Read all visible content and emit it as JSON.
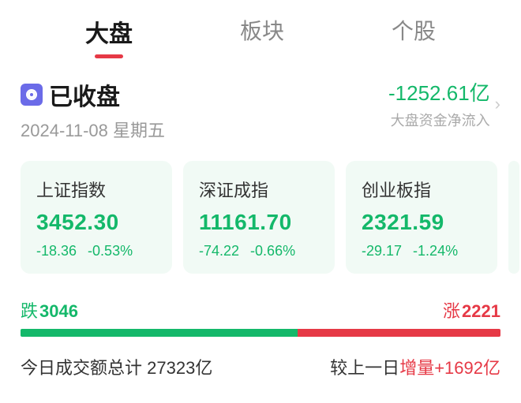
{
  "tabs": {
    "items": [
      "大盘",
      "板块",
      "个股"
    ],
    "active_index": 0
  },
  "status": {
    "title": "已收盘",
    "date": "2024-11-08",
    "weekday": "星期五"
  },
  "netflow": {
    "value": "-1252.61亿",
    "label": "大盘资金净流入",
    "color": "#14b86a"
  },
  "indices": [
    {
      "name": "上证指数",
      "value": "3452.30",
      "change": "-18.36",
      "pct": "-0.53%"
    },
    {
      "name": "深证成指",
      "value": "11161.70",
      "change": "-74.22",
      "pct": "-0.66%"
    },
    {
      "name": "创业板指",
      "value": "2321.59",
      "change": "-29.17",
      "pct": "-1.24%"
    }
  ],
  "breadth": {
    "down_label": "跌",
    "down_count": "3046",
    "up_label": "涨",
    "up_count": "2221",
    "down_pct": 57.8,
    "up_pct": 42.2
  },
  "volume": {
    "total_label": "今日成交额总计",
    "total_value": "27323亿",
    "delta_prefix": "较上一日",
    "delta_word": "增量",
    "delta_value": "+1692亿"
  },
  "colors": {
    "green": "#14b86a",
    "red": "#e63946",
    "card_bg": "#f1faf5",
    "icon_bg": "#6b6be8"
  }
}
